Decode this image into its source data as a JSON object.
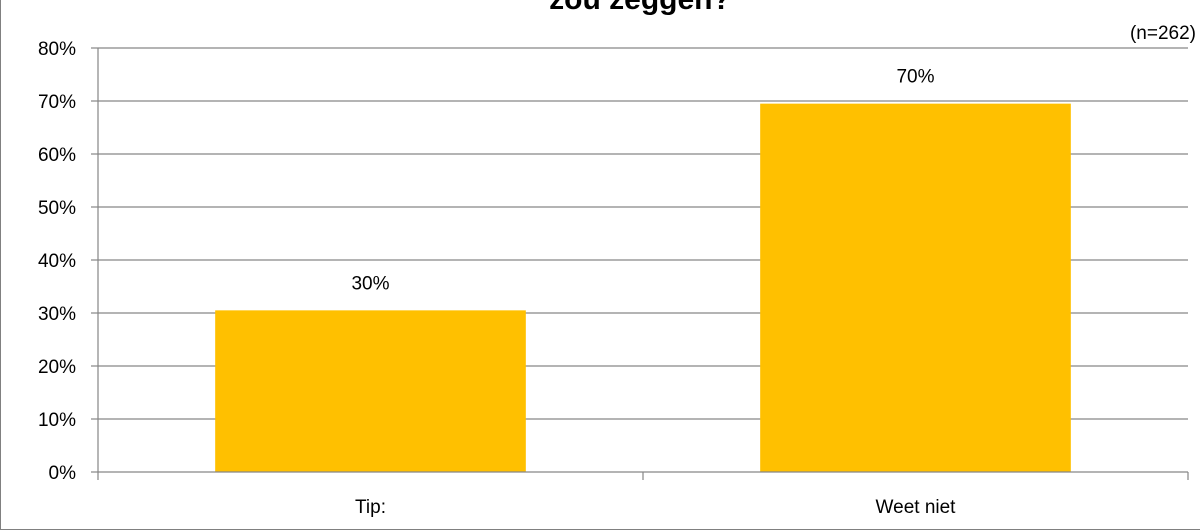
{
  "chart_data": {
    "type": "bar",
    "title": "zou zeggen?",
    "note": "(n=262)",
    "categories": [
      "Tip:",
      "Weet niet"
    ],
    "values": [
      30.5,
      69.5
    ],
    "data_labels": [
      "30%",
      "70%"
    ],
    "ylim": [
      0,
      80
    ],
    "yticks": [
      0,
      10,
      20,
      30,
      40,
      50,
      60,
      70,
      80
    ],
    "ytick_labels": [
      "0%",
      "10%",
      "20%",
      "30%",
      "40%",
      "50%",
      "60%",
      "70%",
      "80%"
    ],
    "grid": true,
    "legend": "none",
    "bar_color": "#FFC000"
  }
}
